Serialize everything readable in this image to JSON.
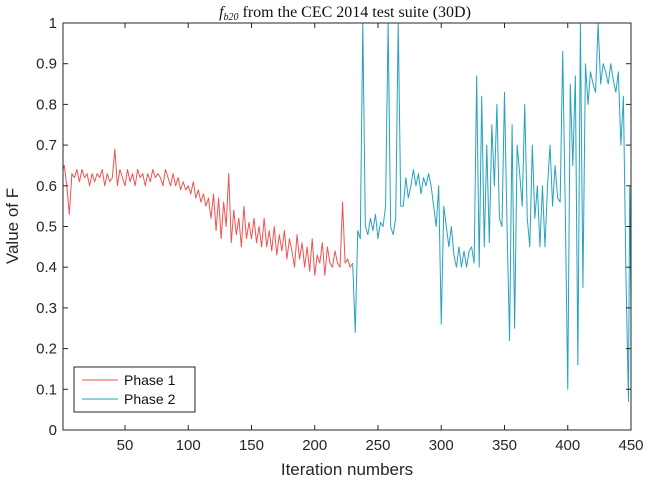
{
  "chart_data": {
    "type": "line",
    "title": {
      "symbol": "f",
      "subscript": "b20",
      "text": " from the CEC 2014 test suite (30D)"
    },
    "xlabel": "Iteration numbers",
    "ylabel": "Value of F",
    "xlim": [
      1,
      450
    ],
    "ylim": [
      0,
      1
    ],
    "xticks": [
      50,
      100,
      150,
      200,
      250,
      300,
      350,
      400,
      450
    ],
    "yticks": [
      0,
      0.1,
      0.2,
      0.3,
      0.4,
      0.5,
      0.6,
      0.7,
      0.8,
      0.9,
      1
    ],
    "ytick_labels": [
      "0",
      "0.1",
      "0.2",
      "0.3",
      "0.4",
      "0.5",
      "0.6",
      "0.7",
      "0.8",
      "0.9",
      "1"
    ],
    "grid": false,
    "legend_position": "bottom-left",
    "series": [
      {
        "name": "Phase 1",
        "color": "#ef5350",
        "points": [
          [
            1,
            0.64
          ],
          [
            2,
            0.65
          ],
          [
            4,
            0.6
          ],
          [
            6,
            0.53
          ],
          [
            8,
            0.63
          ],
          [
            10,
            0.62
          ],
          [
            12,
            0.64
          ],
          [
            14,
            0.61
          ],
          [
            16,
            0.64
          ],
          [
            18,
            0.62
          ],
          [
            20,
            0.63
          ],
          [
            22,
            0.6
          ],
          [
            24,
            0.63
          ],
          [
            26,
            0.61
          ],
          [
            28,
            0.63
          ],
          [
            30,
            0.62
          ],
          [
            32,
            0.64
          ],
          [
            34,
            0.6
          ],
          [
            36,
            0.63
          ],
          [
            38,
            0.61
          ],
          [
            40,
            0.62
          ],
          [
            42,
            0.69
          ],
          [
            44,
            0.6
          ],
          [
            46,
            0.64
          ],
          [
            48,
            0.62
          ],
          [
            50,
            0.6
          ],
          [
            52,
            0.64
          ],
          [
            54,
            0.61
          ],
          [
            56,
            0.63
          ],
          [
            58,
            0.6
          ],
          [
            60,
            0.64
          ],
          [
            62,
            0.62
          ],
          [
            64,
            0.63
          ],
          [
            66,
            0.6
          ],
          [
            68,
            0.63
          ],
          [
            70,
            0.61
          ],
          [
            72,
            0.64
          ],
          [
            74,
            0.62
          ],
          [
            76,
            0.63
          ],
          [
            78,
            0.62
          ],
          [
            80,
            0.6
          ],
          [
            82,
            0.64
          ],
          [
            84,
            0.62
          ],
          [
            86,
            0.6
          ],
          [
            88,
            0.63
          ],
          [
            90,
            0.6
          ],
          [
            92,
            0.62
          ],
          [
            94,
            0.59
          ],
          [
            96,
            0.61
          ],
          [
            98,
            0.59
          ],
          [
            100,
            0.6
          ],
          [
            102,
            0.58
          ],
          [
            104,
            0.61
          ],
          [
            106,
            0.57
          ],
          [
            108,
            0.59
          ],
          [
            110,
            0.56
          ],
          [
            112,
            0.58
          ],
          [
            114,
            0.55
          ],
          [
            116,
            0.57
          ],
          [
            118,
            0.52
          ],
          [
            120,
            0.58
          ],
          [
            122,
            0.49
          ],
          [
            124,
            0.57
          ],
          [
            126,
            0.47
          ],
          [
            128,
            0.56
          ],
          [
            130,
            0.5
          ],
          [
            132,
            0.63
          ],
          [
            134,
            0.46
          ],
          [
            136,
            0.54
          ],
          [
            138,
            0.48
          ],
          [
            140,
            0.52
          ],
          [
            142,
            0.45
          ],
          [
            144,
            0.55
          ],
          [
            146,
            0.47
          ],
          [
            148,
            0.51
          ],
          [
            150,
            0.47
          ],
          [
            152,
            0.52
          ],
          [
            154,
            0.46
          ],
          [
            156,
            0.5
          ],
          [
            158,
            0.45
          ],
          [
            160,
            0.52
          ],
          [
            162,
            0.45
          ],
          [
            164,
            0.49
          ],
          [
            166,
            0.44
          ],
          [
            168,
            0.5
          ],
          [
            170,
            0.43
          ],
          [
            172,
            0.48
          ],
          [
            174,
            0.44
          ],
          [
            176,
            0.49
          ],
          [
            178,
            0.42
          ],
          [
            180,
            0.47
          ],
          [
            182,
            0.44
          ],
          [
            184,
            0.4
          ],
          [
            186,
            0.48
          ],
          [
            188,
            0.42
          ],
          [
            190,
            0.46
          ],
          [
            192,
            0.4
          ],
          [
            194,
            0.45
          ],
          [
            196,
            0.39
          ],
          [
            198,
            0.47
          ],
          [
            200,
            0.38
          ],
          [
            202,
            0.43
          ],
          [
            204,
            0.41
          ],
          [
            206,
            0.46
          ],
          [
            208,
            0.38
          ],
          [
            210,
            0.45
          ],
          [
            212,
            0.41
          ],
          [
            214,
            0.4
          ],
          [
            216,
            0.44
          ],
          [
            218,
            0.41
          ],
          [
            220,
            0.4
          ],
          [
            222,
            0.56
          ],
          [
            224,
            0.41
          ],
          [
            226,
            0.42
          ],
          [
            228,
            0.4
          ],
          [
            230,
            0.41
          ]
        ]
      },
      {
        "name": "Phase 2",
        "color": "#26a2c0",
        "points": [
          [
            230,
            0.41
          ],
          [
            232,
            0.24
          ],
          [
            234,
            0.49
          ],
          [
            236,
            0.47
          ],
          [
            238,
            1.0
          ],
          [
            240,
            0.5
          ],
          [
            242,
            0.48
          ],
          [
            244,
            0.52
          ],
          [
            246,
            0.49
          ],
          [
            248,
            0.53
          ],
          [
            250,
            0.47
          ],
          [
            252,
            0.51
          ],
          [
            254,
            0.5
          ],
          [
            256,
            0.55
          ],
          [
            258,
            1.0
          ],
          [
            260,
            0.5
          ],
          [
            262,
            0.48
          ],
          [
            264,
            0.52
          ],
          [
            266,
            1.0
          ],
          [
            268,
            0.55
          ],
          [
            270,
            0.55
          ],
          [
            272,
            0.62
          ],
          [
            274,
            0.57
          ],
          [
            276,
            0.6
          ],
          [
            278,
            0.64
          ],
          [
            280,
            0.6
          ],
          [
            282,
            0.63
          ],
          [
            284,
            0.58
          ],
          [
            286,
            0.62
          ],
          [
            288,
            0.6
          ],
          [
            290,
            0.63
          ],
          [
            292,
            0.6
          ],
          [
            294,
            0.55
          ],
          [
            296,
            0.5
          ],
          [
            298,
            0.6
          ],
          [
            300,
            0.26
          ],
          [
            302,
            0.55
          ],
          [
            304,
            0.5
          ],
          [
            306,
            0.45
          ],
          [
            308,
            0.5
          ],
          [
            310,
            0.43
          ],
          [
            312,
            0.4
          ],
          [
            314,
            0.45
          ],
          [
            316,
            0.4
          ],
          [
            318,
            0.44
          ],
          [
            320,
            0.4
          ],
          [
            322,
            0.44
          ],
          [
            324,
            0.45
          ],
          [
            326,
            0.41
          ],
          [
            328,
            0.87
          ],
          [
            330,
            0.4
          ],
          [
            332,
            0.82
          ],
          [
            334,
            0.45
          ],
          [
            336,
            0.7
          ],
          [
            338,
            0.46
          ],
          [
            340,
            0.75
          ],
          [
            342,
            0.6
          ],
          [
            344,
            0.8
          ],
          [
            346,
            0.52
          ],
          [
            348,
            0.5
          ],
          [
            350,
            0.83
          ],
          [
            352,
            0.5
          ],
          [
            354,
            0.22
          ],
          [
            356,
            0.75
          ],
          [
            358,
            0.25
          ],
          [
            360,
            0.7
          ],
          [
            362,
            0.63
          ],
          [
            364,
            0.55
          ],
          [
            366,
            0.8
          ],
          [
            368,
            0.52
          ],
          [
            370,
            0.45
          ],
          [
            372,
            0.7
          ],
          [
            374,
            0.52
          ],
          [
            376,
            0.6
          ],
          [
            378,
            0.45
          ],
          [
            380,
            0.6
          ],
          [
            382,
            0.45
          ],
          [
            384,
            0.6
          ],
          [
            386,
            0.7
          ],
          [
            388,
            0.55
          ],
          [
            390,
            0.65
          ],
          [
            392,
            0.57
          ],
          [
            394,
            0.56
          ],
          [
            396,
            0.93
          ],
          [
            398,
            0.55
          ],
          [
            400,
            0.1
          ],
          [
            402,
            0.85
          ],
          [
            404,
            0.65
          ],
          [
            406,
            0.87
          ],
          [
            408,
            0.16
          ],
          [
            410,
            1.0
          ],
          [
            412,
            0.35
          ],
          [
            414,
            0.9
          ],
          [
            416,
            0.8
          ],
          [
            418,
            0.88
          ],
          [
            420,
            0.85
          ],
          [
            422,
            0.83
          ],
          [
            424,
            1.0
          ],
          [
            426,
            0.85
          ],
          [
            428,
            0.9
          ],
          [
            430,
            0.88
          ],
          [
            432,
            0.85
          ],
          [
            434,
            0.9
          ],
          [
            436,
            0.86
          ],
          [
            438,
            0.83
          ],
          [
            440,
            0.88
          ],
          [
            442,
            0.7
          ],
          [
            444,
            0.82
          ],
          [
            446,
            0.38
          ],
          [
            448,
            0.07
          ],
          [
            449,
            0.6
          ],
          [
            450,
            0.3
          ]
        ]
      }
    ]
  }
}
